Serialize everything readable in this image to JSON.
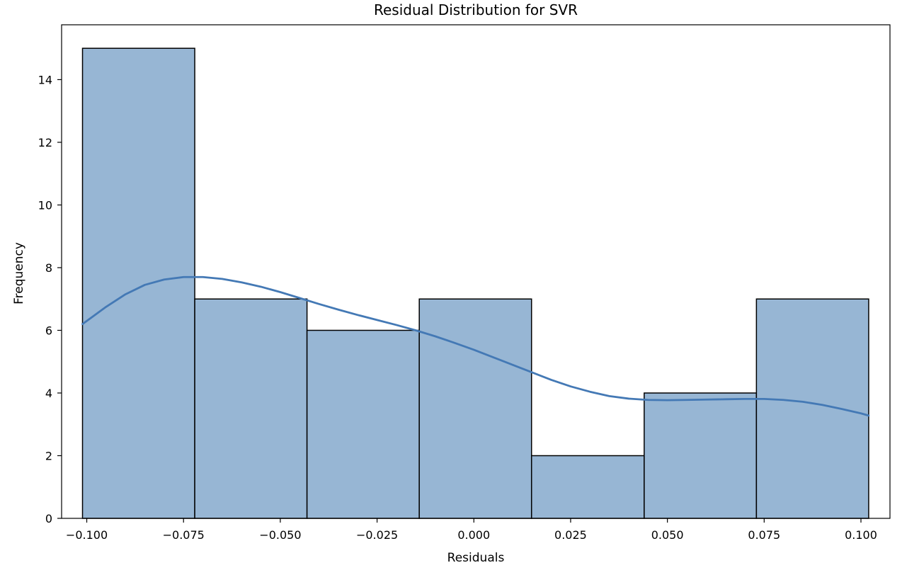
{
  "chart_data": {
    "type": "bar",
    "subtype": "histogram-with-kde",
    "title": "Residual Distribution for SVR",
    "xlabel": "Residuals",
    "ylabel": "Frequency",
    "xlim": [
      -0.1065,
      0.1075
    ],
    "ylim": [
      0,
      15.75
    ],
    "grid": false,
    "xticks": [
      -0.1,
      -0.075,
      -0.05,
      -0.025,
      0.0,
      0.025,
      0.05,
      0.075,
      0.1
    ],
    "xtick_labels": [
      "−0.100",
      "−0.075",
      "−0.050",
      "−0.025",
      "0.000",
      "0.025",
      "0.050",
      "0.075",
      "0.100"
    ],
    "yticks": [
      0,
      2,
      4,
      6,
      8,
      10,
      12,
      14
    ],
    "ytick_labels": [
      "0",
      "2",
      "4",
      "6",
      "8",
      "10",
      "12",
      "14"
    ],
    "bin_edges": [
      -0.1011,
      -0.0721,
      -0.0431,
      -0.0141,
      0.0149,
      0.044,
      0.073,
      0.102
    ],
    "values": [
      15,
      7,
      6,
      7,
      2,
      4,
      7
    ],
    "bar_color": "#97b6d4",
    "edge_color": "#000000",
    "kde": {
      "color": "#4479b5",
      "x": [
        -0.1011,
        -0.095,
        -0.09,
        -0.085,
        -0.08,
        -0.075,
        -0.07,
        -0.065,
        -0.06,
        -0.055,
        -0.05,
        -0.045,
        -0.04,
        -0.035,
        -0.03,
        -0.025,
        -0.02,
        -0.015,
        -0.01,
        -0.005,
        0.0,
        0.005,
        0.01,
        0.015,
        0.02,
        0.025,
        0.03,
        0.035,
        0.04,
        0.045,
        0.05,
        0.055,
        0.06,
        0.065,
        0.07,
        0.075,
        0.08,
        0.085,
        0.09,
        0.095,
        0.1,
        0.102
      ],
      "y": [
        6.2,
        6.75,
        7.15,
        7.45,
        7.62,
        7.7,
        7.7,
        7.64,
        7.53,
        7.39,
        7.22,
        7.03,
        6.84,
        6.66,
        6.49,
        6.33,
        6.17,
        6.0,
        5.81,
        5.6,
        5.38,
        5.14,
        4.9,
        4.66,
        4.42,
        4.21,
        4.04,
        3.9,
        3.82,
        3.78,
        3.77,
        3.78,
        3.79,
        3.8,
        3.81,
        3.81,
        3.78,
        3.72,
        3.62,
        3.49,
        3.35,
        3.28
      ]
    }
  }
}
